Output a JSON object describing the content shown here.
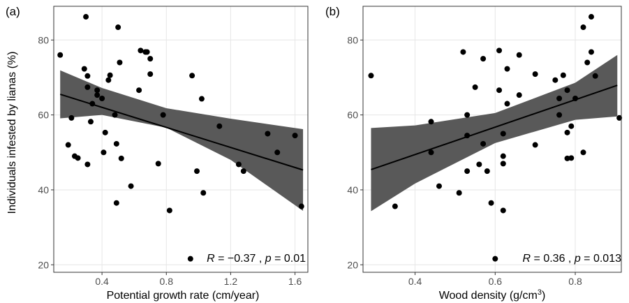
{
  "chart_data": [
    {
      "type": "scatter",
      "panel_label": "(a)",
      "xlabel": "Potential growth rate",
      "xlabel_unit": "(cm/year)",
      "ylabel": "Individuals infested by lianas (%)",
      "xlim": [
        0.1,
        1.68
      ],
      "ylim": [
        18,
        89
      ],
      "xticks": [
        0.4,
        0.8,
        1.2,
        1.6
      ],
      "yticks": [
        20,
        40,
        60,
        80
      ],
      "xtick_labels": [
        "0.4",
        "0.8",
        "1.2",
        "1.6"
      ],
      "ytick_labels": [
        "20",
        "40",
        "60",
        "80"
      ],
      "annotation": {
        "r_symbol": "R",
        "r_text": " = −0.37 , ",
        "p_symbol": "p",
        "p_text": " = 0.01"
      },
      "points": [
        [
          0.14,
          76
        ],
        [
          0.19,
          52
        ],
        [
          0.21,
          59.2
        ],
        [
          0.23,
          49
        ],
        [
          0.25,
          48.5
        ],
        [
          0.29,
          72.3
        ],
        [
          0.3,
          86.2
        ],
        [
          0.31,
          70.4
        ],
        [
          0.31,
          67.4
        ],
        [
          0.31,
          46.8
        ],
        [
          0.33,
          58.2
        ],
        [
          0.34,
          63
        ],
        [
          0.37,
          66.6
        ],
        [
          0.37,
          65.3
        ],
        [
          0.4,
          64.4
        ],
        [
          0.41,
          50
        ],
        [
          0.42,
          55.3
        ],
        [
          0.44,
          69.3
        ],
        [
          0.45,
          70.6
        ],
        [
          0.48,
          60
        ],
        [
          0.49,
          52.3
        ],
        [
          0.49,
          36.5
        ],
        [
          0.5,
          83.4
        ],
        [
          0.51,
          74
        ],
        [
          0.52,
          48.4
        ],
        [
          0.58,
          41
        ],
        [
          0.63,
          66.6
        ],
        [
          0.64,
          77.2
        ],
        [
          0.67,
          76.8
        ],
        [
          0.68,
          76.8
        ],
        [
          0.7,
          75
        ],
        [
          0.7,
          70.9
        ],
        [
          0.75,
          47
        ],
        [
          0.78,
          60
        ],
        [
          0.82,
          34.5
        ],
        [
          0.95,
          21.6
        ],
        [
          0.96,
          70.5
        ],
        [
          0.99,
          45
        ],
        [
          1.02,
          64.3
        ],
        [
          1.03,
          39.2
        ],
        [
          1.13,
          57
        ],
        [
          1.25,
          46.8
        ],
        [
          1.28,
          45
        ],
        [
          1.43,
          55
        ],
        [
          1.49,
          50
        ],
        [
          1.6,
          54.5
        ],
        [
          1.64,
          35.6
        ]
      ],
      "fit_line": {
        "x": [
          0.14,
          1.65
        ],
        "y": [
          65.5,
          45.3
        ]
      },
      "conf_band": {
        "x": [
          0.14,
          0.4,
          0.8,
          1.2,
          1.65
        ],
        "upper": [
          71.9,
          67.2,
          61.8,
          59.0,
          56.2
        ],
        "lower": [
          59.1,
          60.0,
          56.6,
          48.0,
          34.4
        ]
      },
      "colors": {
        "band": "#595959",
        "line": "#000000",
        "point": "#000000",
        "grid": "#e6e6e6"
      }
    },
    {
      "type": "scatter",
      "panel_label": "(b)",
      "xlabel": "Wood density",
      "xlabel_unit": "(g/cm",
      "xlabel_unit_sup": "3",
      "xlabel_unit_close": ")",
      "ylabel": "",
      "xlim": [
        0.27,
        0.915
      ],
      "ylim": [
        18,
        89
      ],
      "xticks": [
        0.4,
        0.6,
        0.8
      ],
      "yticks": [
        20,
        40,
        60,
        80
      ],
      "xtick_labels": [
        "0.4",
        "0.6",
        "0.8"
      ],
      "ytick_labels": [
        "20",
        "40",
        "60",
        "80"
      ],
      "annotation": {
        "r_symbol": "R",
        "r_text": " = 0.36 , ",
        "p_symbol": "p",
        "p_text": " = 0.013"
      },
      "points": [
        [
          0.29,
          70.5
        ],
        [
          0.35,
          35.6
        ],
        [
          0.44,
          58.2
        ],
        [
          0.44,
          50
        ],
        [
          0.46,
          41
        ],
        [
          0.51,
          39.2
        ],
        [
          0.52,
          76.8
        ],
        [
          0.53,
          54.5
        ],
        [
          0.53,
          60
        ],
        [
          0.53,
          45
        ],
        [
          0.55,
          67.4
        ],
        [
          0.56,
          46.8
        ],
        [
          0.57,
          52.3
        ],
        [
          0.57,
          75
        ],
        [
          0.58,
          45
        ],
        [
          0.59,
          36.5
        ],
        [
          0.6,
          21.6
        ],
        [
          0.61,
          77.2
        ],
        [
          0.61,
          66.6
        ],
        [
          0.62,
          55
        ],
        [
          0.62,
          49
        ],
        [
          0.62,
          47
        ],
        [
          0.62,
          34.5
        ],
        [
          0.63,
          72.3
        ],
        [
          0.63,
          63
        ],
        [
          0.66,
          76
        ],
        [
          0.66,
          65.3
        ],
        [
          0.7,
          70.9
        ],
        [
          0.7,
          52
        ],
        [
          0.75,
          69.3
        ],
        [
          0.76,
          64.4
        ],
        [
          0.76,
          60
        ],
        [
          0.77,
          70.6
        ],
        [
          0.78,
          55.3
        ],
        [
          0.78,
          66.6
        ],
        [
          0.79,
          57
        ],
        [
          0.79,
          48.5
        ],
        [
          0.78,
          48.4
        ],
        [
          0.8,
          64.4
        ],
        [
          0.82,
          83.4
        ],
        [
          0.83,
          74
        ],
        [
          0.82,
          50
        ],
        [
          0.84,
          86.2
        ],
        [
          0.84,
          76.8
        ],
        [
          0.85,
          70.4
        ],
        [
          0.91,
          59.2
        ]
      ],
      "fit_line": {
        "x": [
          0.29,
          0.905
        ],
        "y": [
          45.4,
          67.9
        ]
      },
      "conf_band": {
        "x": [
          0.29,
          0.4,
          0.6,
          0.8,
          0.905
        ],
        "upper": [
          56.5,
          57.2,
          60.5,
          68.6,
          76.0
        ],
        "lower": [
          34.3,
          41.7,
          52.5,
          58.7,
          59.6
        ]
      },
      "colors": {
        "band": "#595959",
        "line": "#000000",
        "point": "#000000",
        "grid": "#e6e6e6"
      }
    }
  ]
}
